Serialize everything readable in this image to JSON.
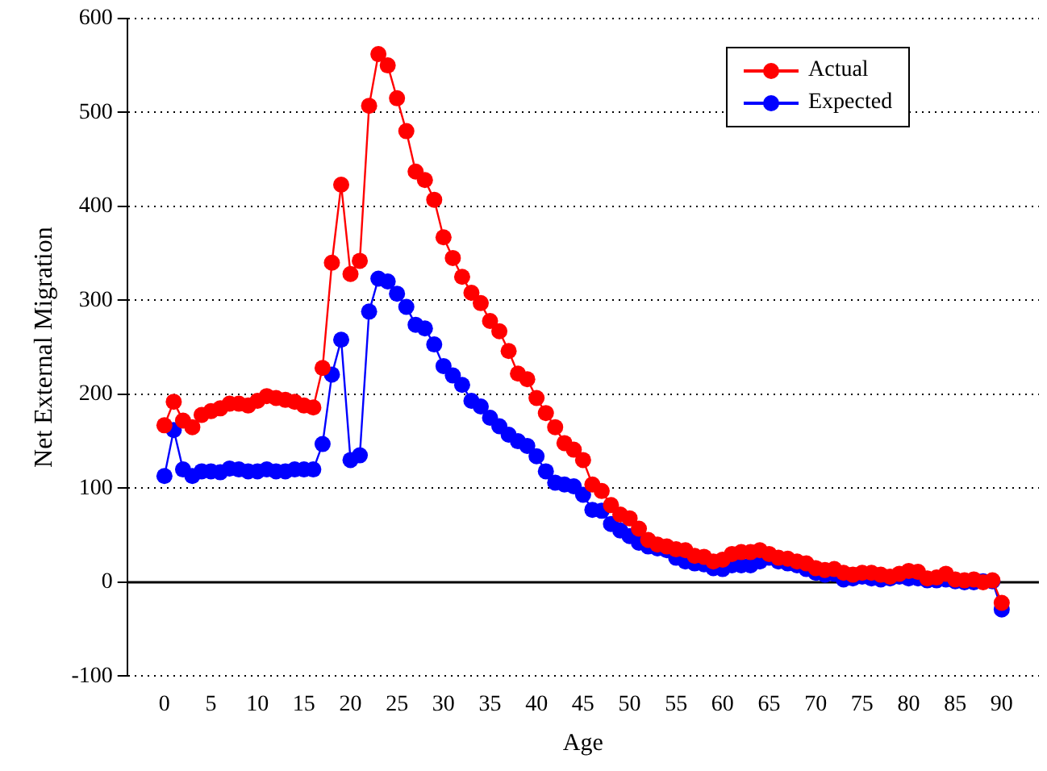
{
  "chart_data": {
    "type": "line",
    "xlabel": "Age",
    "ylabel": "Net External Migration",
    "x": [
      0,
      1,
      2,
      3,
      4,
      5,
      6,
      7,
      8,
      9,
      10,
      11,
      12,
      13,
      14,
      15,
      16,
      17,
      18,
      19,
      20,
      21,
      22,
      23,
      24,
      25,
      26,
      27,
      28,
      29,
      30,
      31,
      32,
      33,
      34,
      35,
      36,
      37,
      38,
      39,
      40,
      41,
      42,
      43,
      44,
      45,
      46,
      47,
      48,
      49,
      50,
      51,
      52,
      53,
      54,
      55,
      56,
      57,
      58,
      59,
      60,
      61,
      62,
      63,
      64,
      65,
      66,
      67,
      68,
      69,
      70,
      71,
      72,
      73,
      74,
      75,
      76,
      77,
      78,
      79,
      80,
      81,
      82,
      83,
      84,
      85,
      86,
      87,
      88,
      89,
      90
    ],
    "series": [
      {
        "name": "Actual",
        "color": "#ff0000",
        "values": [
          167,
          192,
          172,
          165,
          178,
          182,
          185,
          190,
          190,
          188,
          193,
          198,
          196,
          194,
          192,
          188,
          186,
          228,
          340,
          423,
          328,
          342,
          507,
          562,
          550,
          515,
          480,
          437,
          428,
          407,
          367,
          345,
          325,
          308,
          297,
          278,
          267,
          246,
          222,
          216,
          196,
          180,
          165,
          148,
          141,
          130,
          104,
          97,
          82,
          72,
          68,
          57,
          45,
          40,
          38,
          35,
          34,
          28,
          27,
          22,
          24,
          30,
          32,
          32,
          34,
          30,
          26,
          25,
          22,
          20,
          15,
          13,
          14,
          10,
          8,
          10,
          10,
          8,
          6,
          9,
          12,
          11,
          4,
          5,
          9,
          3,
          2,
          3,
          0,
          2,
          -22
        ]
      },
      {
        "name": "Expected",
        "color": "#0000ff",
        "values": [
          113,
          162,
          120,
          113,
          118,
          118,
          117,
          121,
          120,
          118,
          118,
          120,
          118,
          118,
          120,
          120,
          120,
          147,
          221,
          258,
          130,
          135,
          288,
          323,
          320,
          307,
          293,
          274,
          270,
          253,
          230,
          220,
          210,
          193,
          187,
          175,
          166,
          157,
          150,
          145,
          134,
          118,
          106,
          104,
          102,
          93,
          77,
          76,
          62,
          55,
          49,
          42,
          38,
          36,
          34,
          26,
          22,
          20,
          19,
          15,
          14,
          18,
          18,
          18,
          22,
          26,
          22,
          20,
          18,
          14,
          10,
          8,
          9,
          3,
          4,
          6,
          4,
          3,
          4,
          6,
          4,
          4,
          2,
          2,
          3,
          1,
          0,
          0,
          1,
          1,
          -29
        ]
      }
    ],
    "xlim": [
      -4,
      94
    ],
    "xticks": [
      0,
      5,
      10,
      15,
      20,
      25,
      30,
      35,
      40,
      45,
      50,
      55,
      60,
      65,
      70,
      75,
      80,
      85,
      90
    ],
    "ylim": [
      -100,
      600
    ],
    "yticks": [
      -100,
      0,
      100,
      200,
      300,
      400,
      500,
      600
    ],
    "grid": "y",
    "legend": "top right",
    "marker": "circle",
    "line_style": "solid",
    "ref_lines": [
      {
        "axis": "y",
        "value": 0,
        "color": "#000000",
        "line_style": "solid"
      }
    ]
  }
}
